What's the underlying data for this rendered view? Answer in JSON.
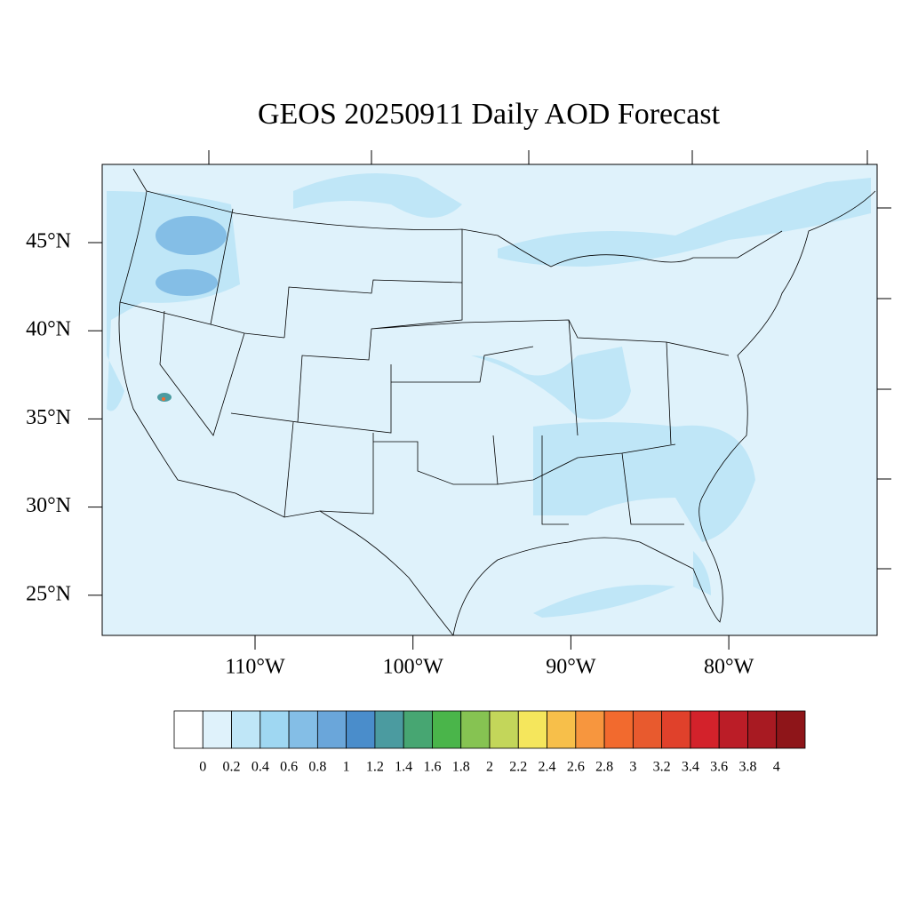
{
  "title": "GEOS 20250911 Daily AOD Forecast",
  "map": {
    "lat_labels": [
      "45°N",
      "40°N",
      "35°N",
      "30°N",
      "25°N"
    ],
    "lon_labels": [
      "110°W",
      "100°W",
      "90°W",
      "80°W"
    ]
  },
  "colorbar": {
    "colors": [
      "#ffffff",
      "#dff2fb",
      "#bfe6f7",
      "#9fd7f2",
      "#84bee6",
      "#6aa6da",
      "#4a8dcb",
      "#4b9ba0",
      "#47a672",
      "#4ab54a",
      "#86c352",
      "#c3d65a",
      "#f5e65c",
      "#f7bf4a",
      "#f7963e",
      "#f26a2e",
      "#e85a2e",
      "#e0412b",
      "#d3222b",
      "#bb1d27",
      "#a81a22",
      "#8e1519"
    ],
    "labels": [
      "0",
      "0.2",
      "0.4",
      "0.6",
      "0.8",
      "1",
      "1.2",
      "1.4",
      "1.6",
      "1.8",
      "2",
      "2.2",
      "2.4",
      "2.6",
      "2.8",
      "3",
      "3.2",
      "3.4",
      "3.6",
      "3.8",
      "4"
    ]
  }
}
